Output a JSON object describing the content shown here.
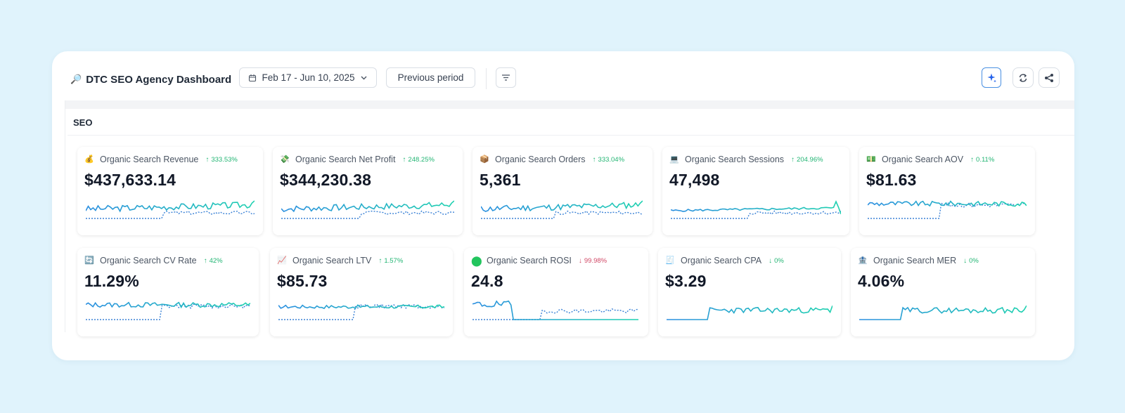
{
  "header": {
    "title": "DTC SEO Agency Dashboard",
    "title_icon": "magnifier-icon",
    "date_range": "Feb 17 - Jun 10, 2025",
    "compare_label": "Previous period"
  },
  "section": {
    "label": "SEO"
  },
  "colors": {
    "current_line": "#1fd1b0",
    "current_line_alt": "#2b8fe0",
    "previous_line": "#3b82d6",
    "positive": "#22b573",
    "negative": "#d14866"
  },
  "metrics": [
    {
      "id": "revenue",
      "icon": "money-bag-icon",
      "label": "Organic Search Revenue",
      "delta": "333.53%",
      "direction": "up",
      "value": "$437,633.14"
    },
    {
      "id": "net-profit",
      "icon": "flying-money-icon",
      "label": "Organic Search Net Profit",
      "delta": "248.25%",
      "direction": "up",
      "value": "$344,230.38"
    },
    {
      "id": "orders",
      "icon": "package-icon",
      "label": "Organic Search Orders",
      "delta": "333.04%",
      "direction": "up",
      "value": "5,361"
    },
    {
      "id": "sessions",
      "icon": "computer-icon",
      "label": "Organic Search Sessions",
      "delta": "204.96%",
      "direction": "up",
      "value": "47,498"
    },
    {
      "id": "aov",
      "icon": "banknote-icon",
      "label": "Organic Search AOV",
      "delta": "0.11%",
      "direction": "up",
      "value": "$81.63"
    },
    {
      "id": "cv-rate",
      "icon": "cycle-icon",
      "label": "Organic Search CV Rate",
      "delta": "42%",
      "direction": "up",
      "value": "11.29%"
    },
    {
      "id": "ltv",
      "icon": "chart-up-icon",
      "label": "Organic Search LTV",
      "delta": "1.57%",
      "direction": "up",
      "value": "$85.73"
    },
    {
      "id": "rosi",
      "icon": "green-circle-icon",
      "label": "Organic Search ROSI",
      "delta": "99.98%",
      "direction": "down",
      "value": "24.8"
    },
    {
      "id": "cpa",
      "icon": "cashier-icon",
      "label": "Organic Search CPA",
      "delta": "0%",
      "direction": "down",
      "value": "$3.29"
    },
    {
      "id": "mer",
      "icon": "bank-icon",
      "label": "Organic Search MER",
      "delta": "0%",
      "direction": "down",
      "value": "4.06%"
    }
  ]
}
